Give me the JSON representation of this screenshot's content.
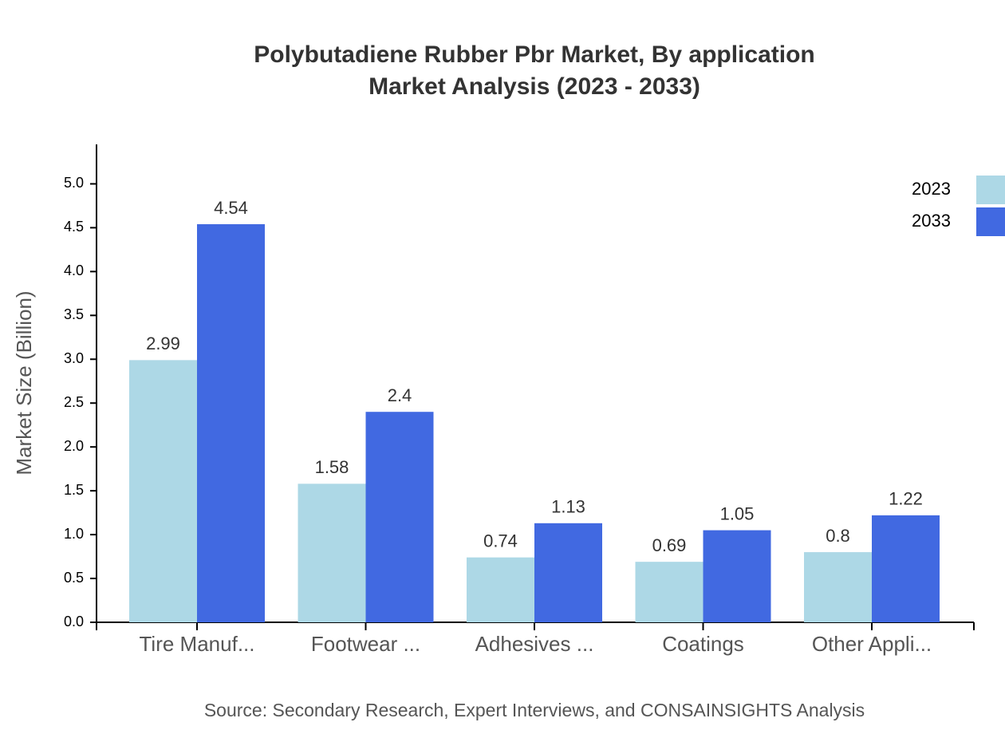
{
  "chart_data": {
    "type": "bar",
    "title": "Polybutadiene Rubber Pbr Market, By application",
    "subtitle": "Market Analysis (2023 - 2033)",
    "y_label": "Market Size (Billion)",
    "source": "Source: Secondary Research, Expert Interviews, and CONSAINSIGHTS Analysis",
    "categories": [
      "Tire Manuf...",
      "Footwear ...",
      "Adhesives ...",
      "Coatings",
      "Other Appli..."
    ],
    "series": [
      {
        "name": "2023",
        "color": "#add8e6",
        "values": [
          2.99,
          1.58,
          0.74,
          0.69,
          0.8
        ]
      },
      {
        "name": "2033",
        "color": "#4169e1",
        "values": [
          4.54,
          2.4,
          1.13,
          1.05,
          1.22
        ]
      }
    ],
    "ylim": [
      0,
      5.45
    ],
    "yticks": [
      {
        "value": 0,
        "label": "0.0"
      },
      0.5,
      {
        "value": 1,
        "label": "1.0"
      },
      1.5,
      {
        "value": 2,
        "label": "2.0"
      },
      2.5,
      {
        "value": 3,
        "label": "3.0"
      },
      3.5,
      {
        "value": 4,
        "label": "4.0"
      },
      4.5,
      {
        "value": 5,
        "label": "5.0"
      }
    ],
    "grid": false,
    "legend": "top-right"
  }
}
